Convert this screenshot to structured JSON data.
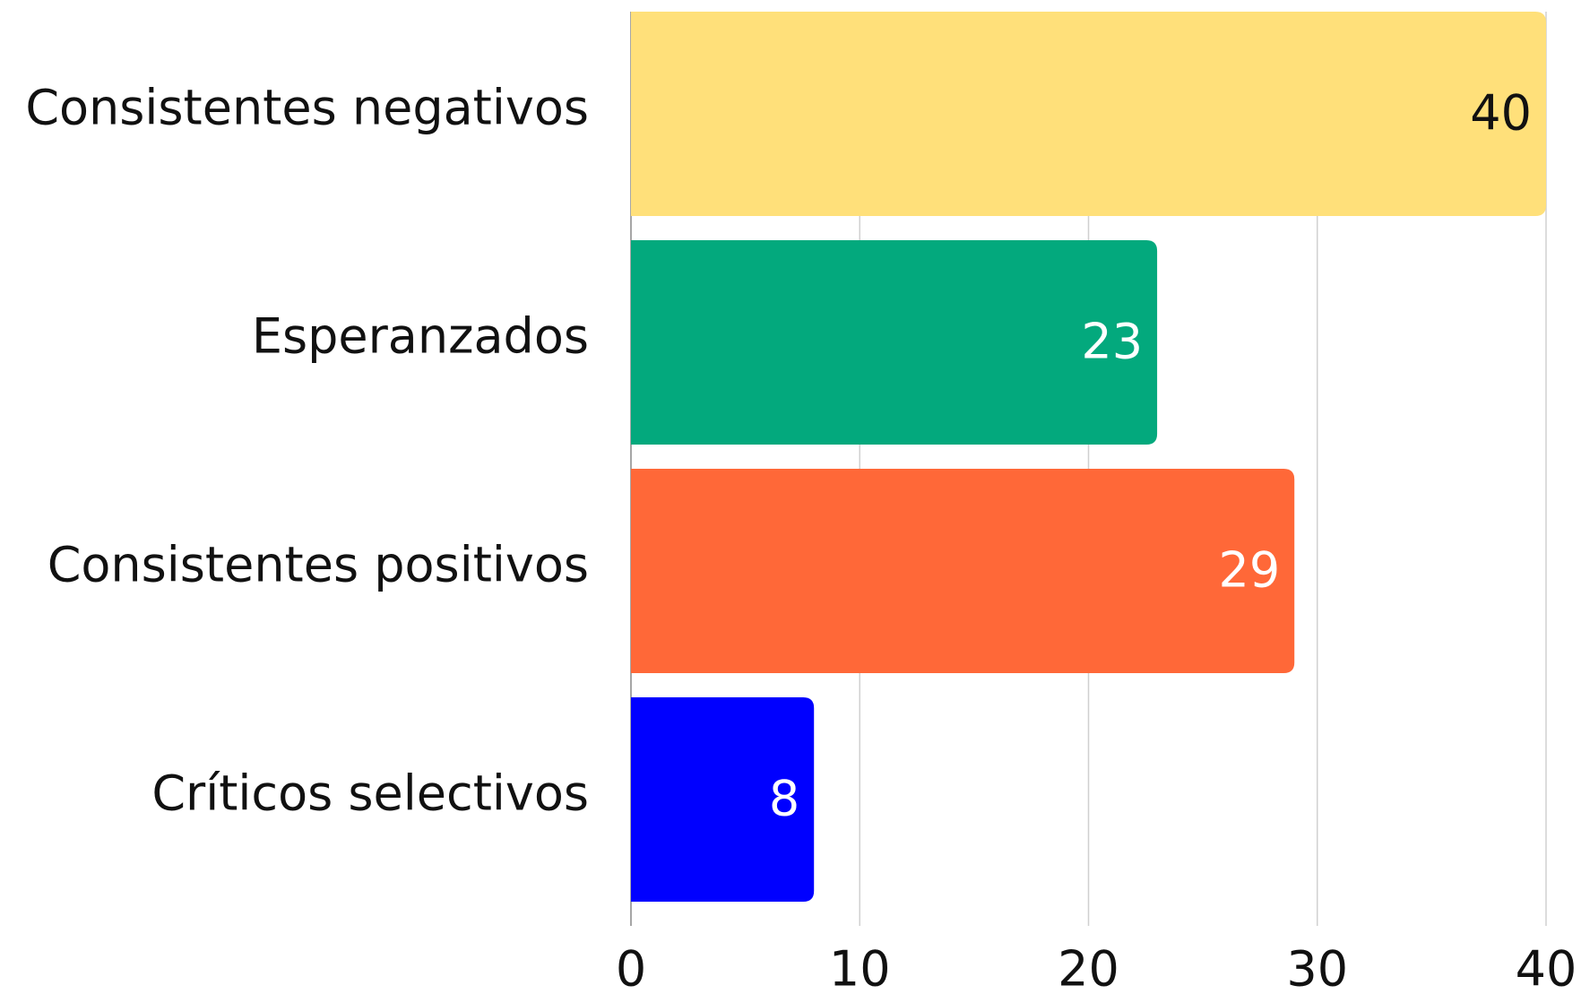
{
  "chart_data": {
    "type": "bar",
    "orientation": "horizontal",
    "categories": [
      "Consistentes negativos",
      "Esperanzados",
      "Consistentes positivos",
      "Críticos selectivos"
    ],
    "values": [
      40,
      23,
      29,
      8
    ],
    "colors": [
      "#FFE07A",
      "#03A97D",
      "#FF6838",
      "#0000FF"
    ],
    "xlim": [
      0,
      40
    ],
    "xticks": [
      0,
      10,
      20,
      30,
      40
    ],
    "grid": true
  }
}
